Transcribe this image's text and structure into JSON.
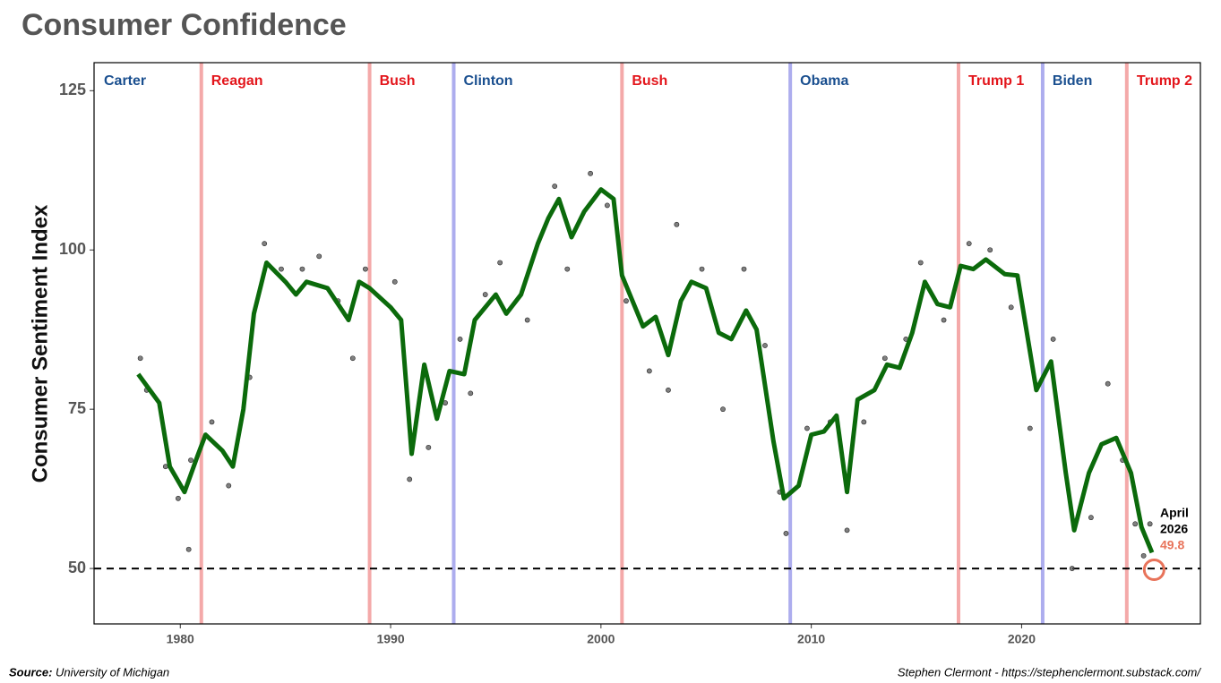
{
  "chart_data": {
    "type": "line",
    "title": "Consumer Confidence",
    "y_label": "Consumer Sentiment Index",
    "source_label": "Source:",
    "source": "University of Michigan",
    "credit": "Stephen Clermont - https://stephenclermont.substack.com/",
    "xlim": [
      1975.9,
      2028.5
    ],
    "ylim": [
      41.3,
      129.4
    ],
    "xticks": [
      1980,
      1990,
      2000,
      2010,
      2020
    ],
    "yticks": [
      50,
      75,
      100,
      125
    ],
    "reference_line": 50,
    "term_lines": [
      {
        "x": 1981,
        "color": "#f4a9a9"
      },
      {
        "x": 1989,
        "color": "#f4a9a9"
      },
      {
        "x": 1993,
        "color": "#adadee"
      },
      {
        "x": 2001,
        "color": "#f4a9a9"
      },
      {
        "x": 2009,
        "color": "#adadee"
      },
      {
        "x": 2017,
        "color": "#f4a9a9"
      },
      {
        "x": 2021,
        "color": "#adadee"
      },
      {
        "x": 2025,
        "color": "#f4a9a9"
      }
    ],
    "term_labels": [
      {
        "name": "Carter",
        "color": "#1a4f8f"
      },
      {
        "name": "Reagan",
        "color": "#e3161c"
      },
      {
        "name": "Bush",
        "color": "#e3161c"
      },
      {
        "name": "Clinton",
        "color": "#1a4f8f"
      },
      {
        "name": "Bush",
        "color": "#e3161c"
      },
      {
        "name": "Obama",
        "color": "#1a4f8f"
      },
      {
        "name": "Trump 1",
        "color": "#e3161c"
      },
      {
        "name": "Biden",
        "color": "#1a4f8f"
      },
      {
        "name": "Trump 2",
        "color": "#e3161c"
      }
    ],
    "trend": {
      "color": "#0b6a0b",
      "x": [
        1978,
        1979,
        1979.5,
        1980.2,
        1980.8,
        1981.2,
        1982,
        1982.5,
        1983,
        1983.5,
        1984.1,
        1985,
        1985.5,
        1986,
        1987,
        1988,
        1988.5,
        1989,
        1990,
        1990.5,
        1991,
        1991.6,
        1992.2,
        1992.8,
        1993.5,
        1994,
        1995,
        1995.5,
        1996.2,
        1997,
        1997.5,
        1998,
        1998.6,
        1999.2,
        2000,
        2000.6,
        2001,
        2001.5,
        2002,
        2002.6,
        2003.2,
        2003.8,
        2004.3,
        2005,
        2005.6,
        2006.2,
        2006.9,
        2007.4,
        2008.2,
        2008.7,
        2009.4,
        2010,
        2010.6,
        2011.2,
        2011.7,
        2012.2,
        2013,
        2013.6,
        2014.2,
        2014.8,
        2015.4,
        2016,
        2016.6,
        2017.1,
        2017.7,
        2018.3,
        2019.2,
        2019.8,
        2020.7,
        2021.4,
        2022.1,
        2022.5,
        2023.2,
        2023.8,
        2024.5,
        2025.2,
        2025.7,
        2026.2
      ],
      "values": [
        80.5,
        76,
        66,
        62,
        67.5,
        71,
        68.5,
        66,
        75,
        90,
        98,
        95,
        93,
        95,
        94,
        89,
        95,
        94,
        91,
        89,
        68,
        82,
        73.5,
        81,
        80.5,
        89,
        93,
        90,
        93,
        101,
        105,
        108,
        102,
        106,
        109.5,
        108,
        96,
        92,
        88,
        89.5,
        83.5,
        92,
        95,
        94,
        87,
        86,
        90.5,
        87.5,
        70,
        61,
        63,
        71,
        71.5,
        74,
        62,
        76.5,
        78,
        82,
        81.5,
        87,
        95,
        91.5,
        91,
        97.5,
        97,
        98.5,
        96.2,
        96,
        78,
        82.5,
        65,
        56,
        65,
        69.5,
        70.5,
        65,
        56.5,
        52.5
      ]
    },
    "points": {
      "color": "#555555",
      "x": [
        1978.1,
        1978.4,
        1979.3,
        1979.9,
        1980.4,
        1980.5,
        1981.5,
        1982.3,
        1983.3,
        1984,
        1984.8,
        1985.8,
        1986.6,
        1987.5,
        1988.2,
        1988.8,
        1990.2,
        1990.9,
        1991.8,
        1992.6,
        1993.3,
        1993.8,
        1994.5,
        1995.2,
        1996.5,
        1997.8,
        1998.4,
        1999.5,
        2000.3,
        2001.2,
        2002.3,
        2003.2,
        2003.6,
        2004.8,
        2005.8,
        2006.8,
        2007.8,
        2008.5,
        2008.8,
        2009.8,
        2010.9,
        2011.7,
        2012.5,
        2013.5,
        2014.5,
        2015.2,
        2016.3,
        2017.5,
        2018.5,
        2019.5,
        2020.4,
        2021.5,
        2022.4,
        2023.3,
        2024.1,
        2024.8,
        2025.4,
        2025.8,
        2026.1
      ],
      "values": [
        83,
        78,
        66,
        61,
        53,
        67,
        73,
        63,
        80,
        101,
        97,
        97,
        99,
        92,
        83,
        97,
        95,
        64,
        69,
        76,
        86,
        77.5,
        93,
        98,
        89,
        110,
        97,
        112,
        107,
        92,
        81,
        78,
        104,
        97,
        75,
        97,
        85,
        62,
        55.5,
        72,
        73,
        56,
        73,
        83,
        86,
        98,
        89,
        101,
        100,
        91,
        72,
        86,
        50,
        58,
        79,
        67,
        57,
        52,
        57
      ]
    },
    "latest": {
      "month": "April",
      "year": "2026",
      "x": 2026.3,
      "value": 49.8,
      "label": "49.8",
      "color": "#e8735a"
    }
  }
}
